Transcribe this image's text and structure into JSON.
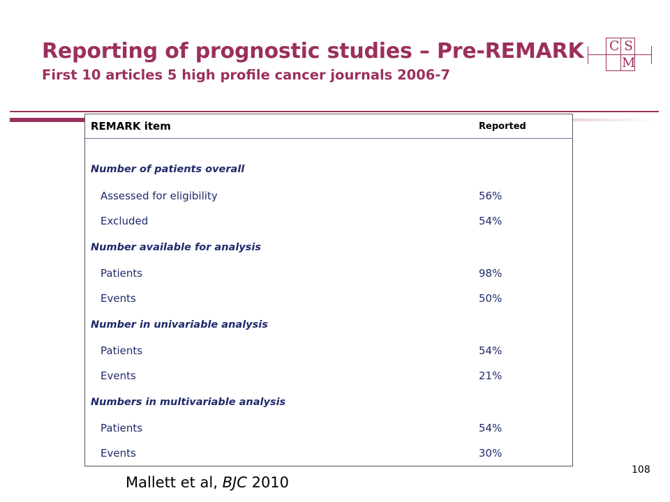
{
  "title": "Reporting of prognostic studies – Pre-REMARK",
  "subtitle": "First 10 articles 5 high profile cancer journals 2006-7",
  "logo": {
    "letters": [
      "C",
      "S",
      "M"
    ]
  },
  "table": {
    "headers": {
      "item": "REMARK item",
      "reported": "Reported"
    },
    "sections": [
      {
        "title": "Number of patients overall",
        "rows": [
          {
            "label": "Assessed for eligibility",
            "value": "56%"
          },
          {
            "label": "Excluded",
            "value": "54%"
          }
        ]
      },
      {
        "title": "Number available for analysis",
        "rows": [
          {
            "label": "Patients",
            "value": "98%"
          },
          {
            "label": "Events",
            "value": "50%"
          }
        ]
      },
      {
        "title": "Number in univariable analysis",
        "rows": [
          {
            "label": "Patients",
            "value": "54%"
          },
          {
            "label": "Events",
            "value": "21%"
          }
        ]
      },
      {
        "title": "Numbers in multivariable analysis",
        "rows": [
          {
            "label": "Patients",
            "value": "54%"
          },
          {
            "label": "Events",
            "value": "30%"
          }
        ]
      }
    ]
  },
  "citation": {
    "authors": "Mallett et al,",
    "journal": "BJC",
    "year": "2010"
  },
  "page_number": "108",
  "colors": {
    "accent": "#9b2f5d",
    "table_text": "#1f2a6b"
  }
}
